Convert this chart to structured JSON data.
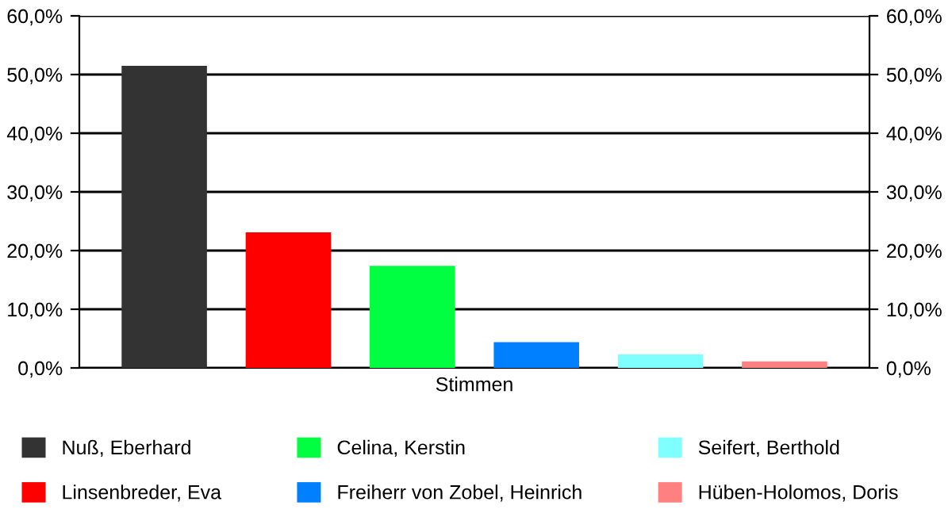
{
  "chart_data": {
    "type": "bar",
    "categories": [
      "Stimmen"
    ],
    "series": [
      {
        "name": "Nuß, Eberhard",
        "color": "#333333",
        "values": [
          51.5
        ]
      },
      {
        "name": "Linsenbreder, Eva",
        "color": "#ff0000",
        "values": [
          23.1
        ]
      },
      {
        "name": "Celina, Kerstin",
        "color": "#00ff40",
        "values": [
          17.4
        ]
      },
      {
        "name": "Freiherr von Zobel, Heinrich",
        "color": "#0080ff",
        "values": [
          4.4
        ]
      },
      {
        "name": "Seifert, Berthold",
        "color": "#80ffff",
        "values": [
          2.3
        ]
      },
      {
        "name": "Hüben-Holomos, Doris",
        "color": "#ff8080",
        "values": [
          1.1
        ]
      }
    ],
    "ylim": [
      0,
      60
    ],
    "yticks": [
      {
        "value": 0,
        "label": "0,0%"
      },
      {
        "value": 10,
        "label": "10,0%"
      },
      {
        "value": 20,
        "label": "20,0%"
      },
      {
        "value": 30,
        "label": "30,0%"
      },
      {
        "value": 40,
        "label": "40,0%"
      },
      {
        "value": 50,
        "label": "50,0%"
      },
      {
        "value": 60,
        "label": "60,0%"
      }
    ],
    "grid": "y",
    "legend": "bottom"
  }
}
